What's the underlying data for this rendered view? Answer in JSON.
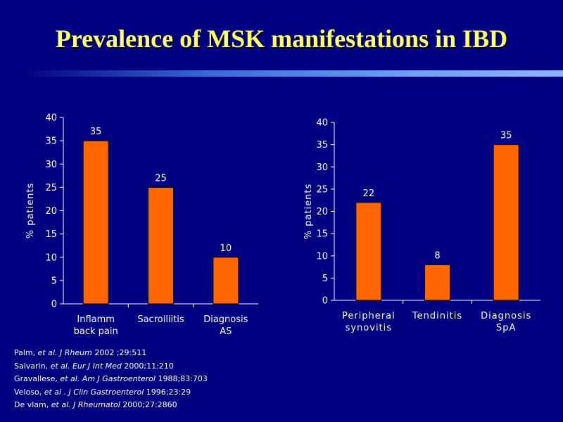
{
  "slide": {
    "title": "Prevalence of MSK manifestations in IBD",
    "colors": {
      "background": "#000080",
      "title": "#ffff66",
      "bar": "#ff6600",
      "text": "#ffffff"
    }
  },
  "chart_data": [
    {
      "type": "bar",
      "categories": [
        [
          "Inflamm",
          "back pain"
        ],
        [
          "Sacroiliitis"
        ],
        [
          "Diagnosis",
          "AS"
        ]
      ],
      "values": [
        35,
        25,
        10
      ],
      "ylabel": "% patients",
      "ylim": [
        0,
        40
      ],
      "yticks": [
        0,
        5,
        10,
        15,
        20,
        25,
        30,
        35,
        40
      ],
      "data_labels": true,
      "grid": false
    },
    {
      "type": "bar",
      "categories": [
        [
          "Peripheral",
          "synovitis"
        ],
        [
          "Tendinitis"
        ],
        [
          "Diagnosis",
          "SpA"
        ]
      ],
      "values": [
        22,
        8,
        35
      ],
      "ylabel": "% patients",
      "ylim": [
        0,
        40
      ],
      "yticks": [
        0,
        5,
        10,
        15,
        20,
        25,
        30,
        35,
        40
      ],
      "data_labels": true,
      "grid": false
    }
  ],
  "references": [
    {
      "author": "Palm, ",
      "etal": "et al.",
      "journal": " J Rheum",
      "cite": " 2002 ;29:511"
    },
    {
      "author": "Salvarin, ",
      "etal": "et al.",
      "journal": " Eur J Int Med",
      "cite": " 2000;11:210"
    },
    {
      "author": "Gravallese, ",
      "etal": "et al.",
      "journal": " Am J Gastroenterol",
      "cite": " 1988;83:703"
    },
    {
      "author": "Veloso, ",
      "etal": "et al",
      "journal": "   . J Clin Gastroenterol",
      "cite": " 1996;23:29"
    },
    {
      "author": "De vlam, ",
      "etal": "et al.",
      "journal": " J Rheumatol",
      "cite": " 2000;27:2860"
    }
  ]
}
